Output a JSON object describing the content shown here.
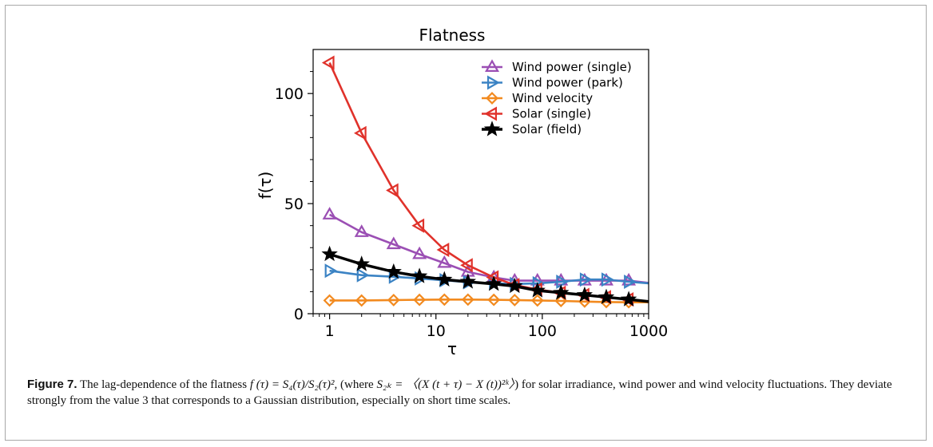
{
  "chart_data": {
    "type": "line",
    "title": "Flatness",
    "xlabel": "τ",
    "ylabel": "f(τ)",
    "xscale": "log",
    "xlim": [
      0.7,
      1000
    ],
    "ylim": [
      0,
      120
    ],
    "xticks": [
      1,
      10,
      100,
      1000
    ],
    "xtick_labels": [
      "1",
      "10",
      "100",
      "1000"
    ],
    "yticks": [
      0,
      50,
      100
    ],
    "ytick_labels": [
      "0",
      "50",
      "100"
    ],
    "grid": false,
    "legend_position": "top-right",
    "series": [
      {
        "name": "Wind power (single)",
        "color": "#9b4fb4",
        "marker": "triangle-up",
        "x": [
          1,
          2,
          4,
          7,
          12,
          20,
          35,
          55,
          90,
          150,
          250,
          400,
          650,
          1000
        ],
        "y": [
          45,
          37,
          31.5,
          27,
          23,
          19,
          16.5,
          15,
          15,
          15,
          15,
          15,
          15,
          14
        ],
        "marker_x": [
          1,
          2,
          4,
          7,
          12,
          20,
          35,
          55,
          90,
          150,
          250,
          400,
          650
        ]
      },
      {
        "name": "Wind power (park)",
        "color": "#3b83c4",
        "marker": "triangle-right",
        "x": [
          1,
          2,
          4,
          7,
          12,
          20,
          35,
          55,
          90,
          150,
          250,
          400,
          650,
          1000
        ],
        "y": [
          19.5,
          17.5,
          16.8,
          16,
          15.2,
          14.3,
          13.8,
          13.5,
          13.8,
          14.5,
          15.5,
          15.5,
          14.5,
          13.8
        ],
        "marker_x": [
          1,
          2,
          4,
          7,
          12,
          20,
          35,
          55,
          90,
          150,
          250,
          400,
          650
        ]
      },
      {
        "name": "Wind velocity",
        "color": "#f28a1f",
        "marker": "diamond",
        "x": [
          1,
          2,
          4,
          7,
          12,
          20,
          35,
          55,
          90,
          150,
          250,
          400,
          650,
          1000
        ],
        "y": [
          6,
          6,
          6.2,
          6.3,
          6.4,
          6.4,
          6.3,
          6.2,
          6,
          5.8,
          5.5,
          5.3,
          5.2,
          5.2
        ],
        "marker_x": [
          1,
          2,
          4,
          7,
          12,
          20,
          35,
          55,
          90,
          150,
          250,
          400,
          650
        ]
      },
      {
        "name": "Solar (single)",
        "color": "#e0322b",
        "marker": "triangle-left",
        "x": [
          1,
          2,
          4,
          7,
          12,
          20,
          35,
          55,
          90,
          150,
          250,
          400,
          650,
          1000
        ],
        "y": [
          114,
          82,
          56,
          40,
          29,
          22,
          16.5,
          13,
          11,
          9.5,
          8.5,
          7.5,
          6.5,
          5.5
        ],
        "marker_x": [
          1,
          2,
          4,
          7,
          12,
          20,
          35,
          55,
          90,
          150,
          250,
          400,
          650
        ]
      },
      {
        "name": "Solar (field)",
        "color": "#000000",
        "marker": "star",
        "x": [
          1,
          2,
          4,
          7,
          12,
          20,
          35,
          55,
          90,
          150,
          250,
          400,
          650,
          1000
        ],
        "y": [
          27,
          22.5,
          19,
          17,
          15.5,
          14.5,
          13.5,
          12.5,
          10.5,
          9.5,
          8.5,
          7.5,
          6.5,
          5.5
        ],
        "marker_x": [
          1,
          2,
          4,
          7,
          12,
          20,
          35,
          55,
          90,
          150,
          250,
          400,
          650
        ]
      }
    ]
  },
  "caption": {
    "label": "Figure 7.",
    "text_1": " The lag-dependence of the flatness ",
    "formula_1": "f (τ) = S₄(τ)/S₂(τ)²",
    "text_2": ", (where ",
    "formula_2": "S₂ₖ = 〈(X (t + τ) − X (t))²ᵏ〉",
    "text_3": ") for solar irradiance, wind power and wind velocity fluctuations. They deviate strongly from the value 3 that corresponds to a Gaussian distribution, especially on short time scales."
  }
}
